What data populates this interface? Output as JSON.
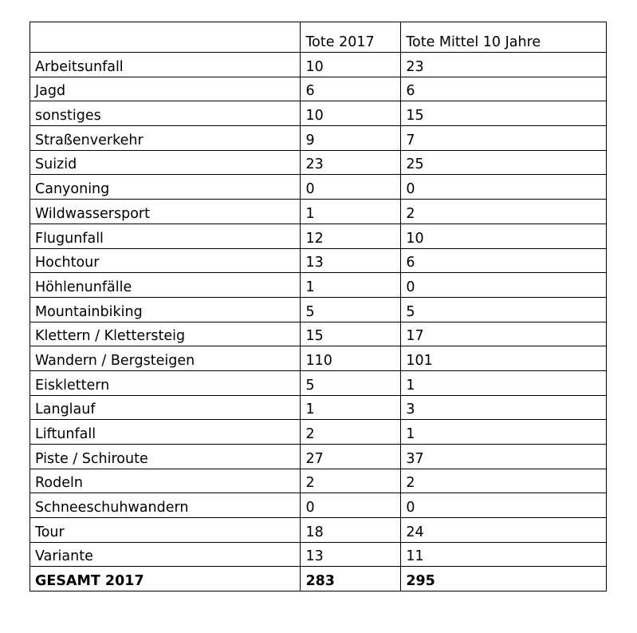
{
  "table": {
    "header": [
      "Tote 2017",
      "Tote Mittel 10 Jahre"
    ],
    "rows": [
      [
        "Arbeitsunfall",
        10,
        23
      ],
      [
        "Jagd",
        6,
        6
      ],
      [
        "sonstiges",
        10,
        15
      ],
      [
        "Straßenverkehr",
        9,
        7
      ],
      [
        "Suizid",
        23,
        25
      ],
      [
        "Canyoning",
        0,
        0
      ],
      [
        "Wildwassersport",
        1,
        2
      ],
      [
        "Flugunfall",
        12,
        10
      ],
      [
        "Hochtour",
        13,
        6
      ],
      [
        "Höhlenunfälle",
        1,
        0
      ],
      [
        "Mountainbiking",
        5,
        5
      ],
      [
        "Klettern / Klettersteig",
        15,
        17
      ],
      [
        "Wandern / Bergsteigen",
        110,
        101
      ],
      [
        "Eisklettern",
        5,
        1
      ],
      [
        "Langlauf",
        1,
        3
      ],
      [
        "Liftunfall",
        2,
        1
      ],
      [
        "Piste / Schiroute",
        27,
        37
      ],
      [
        "Rodeln",
        2,
        2
      ],
      [
        "Schneeschuhwandern",
        0,
        0
      ],
      [
        "Tour",
        18,
        24
      ],
      [
        "Variante",
        13,
        11
      ]
    ],
    "total": [
      "GESAMT 2017",
      283,
      295
    ]
  }
}
